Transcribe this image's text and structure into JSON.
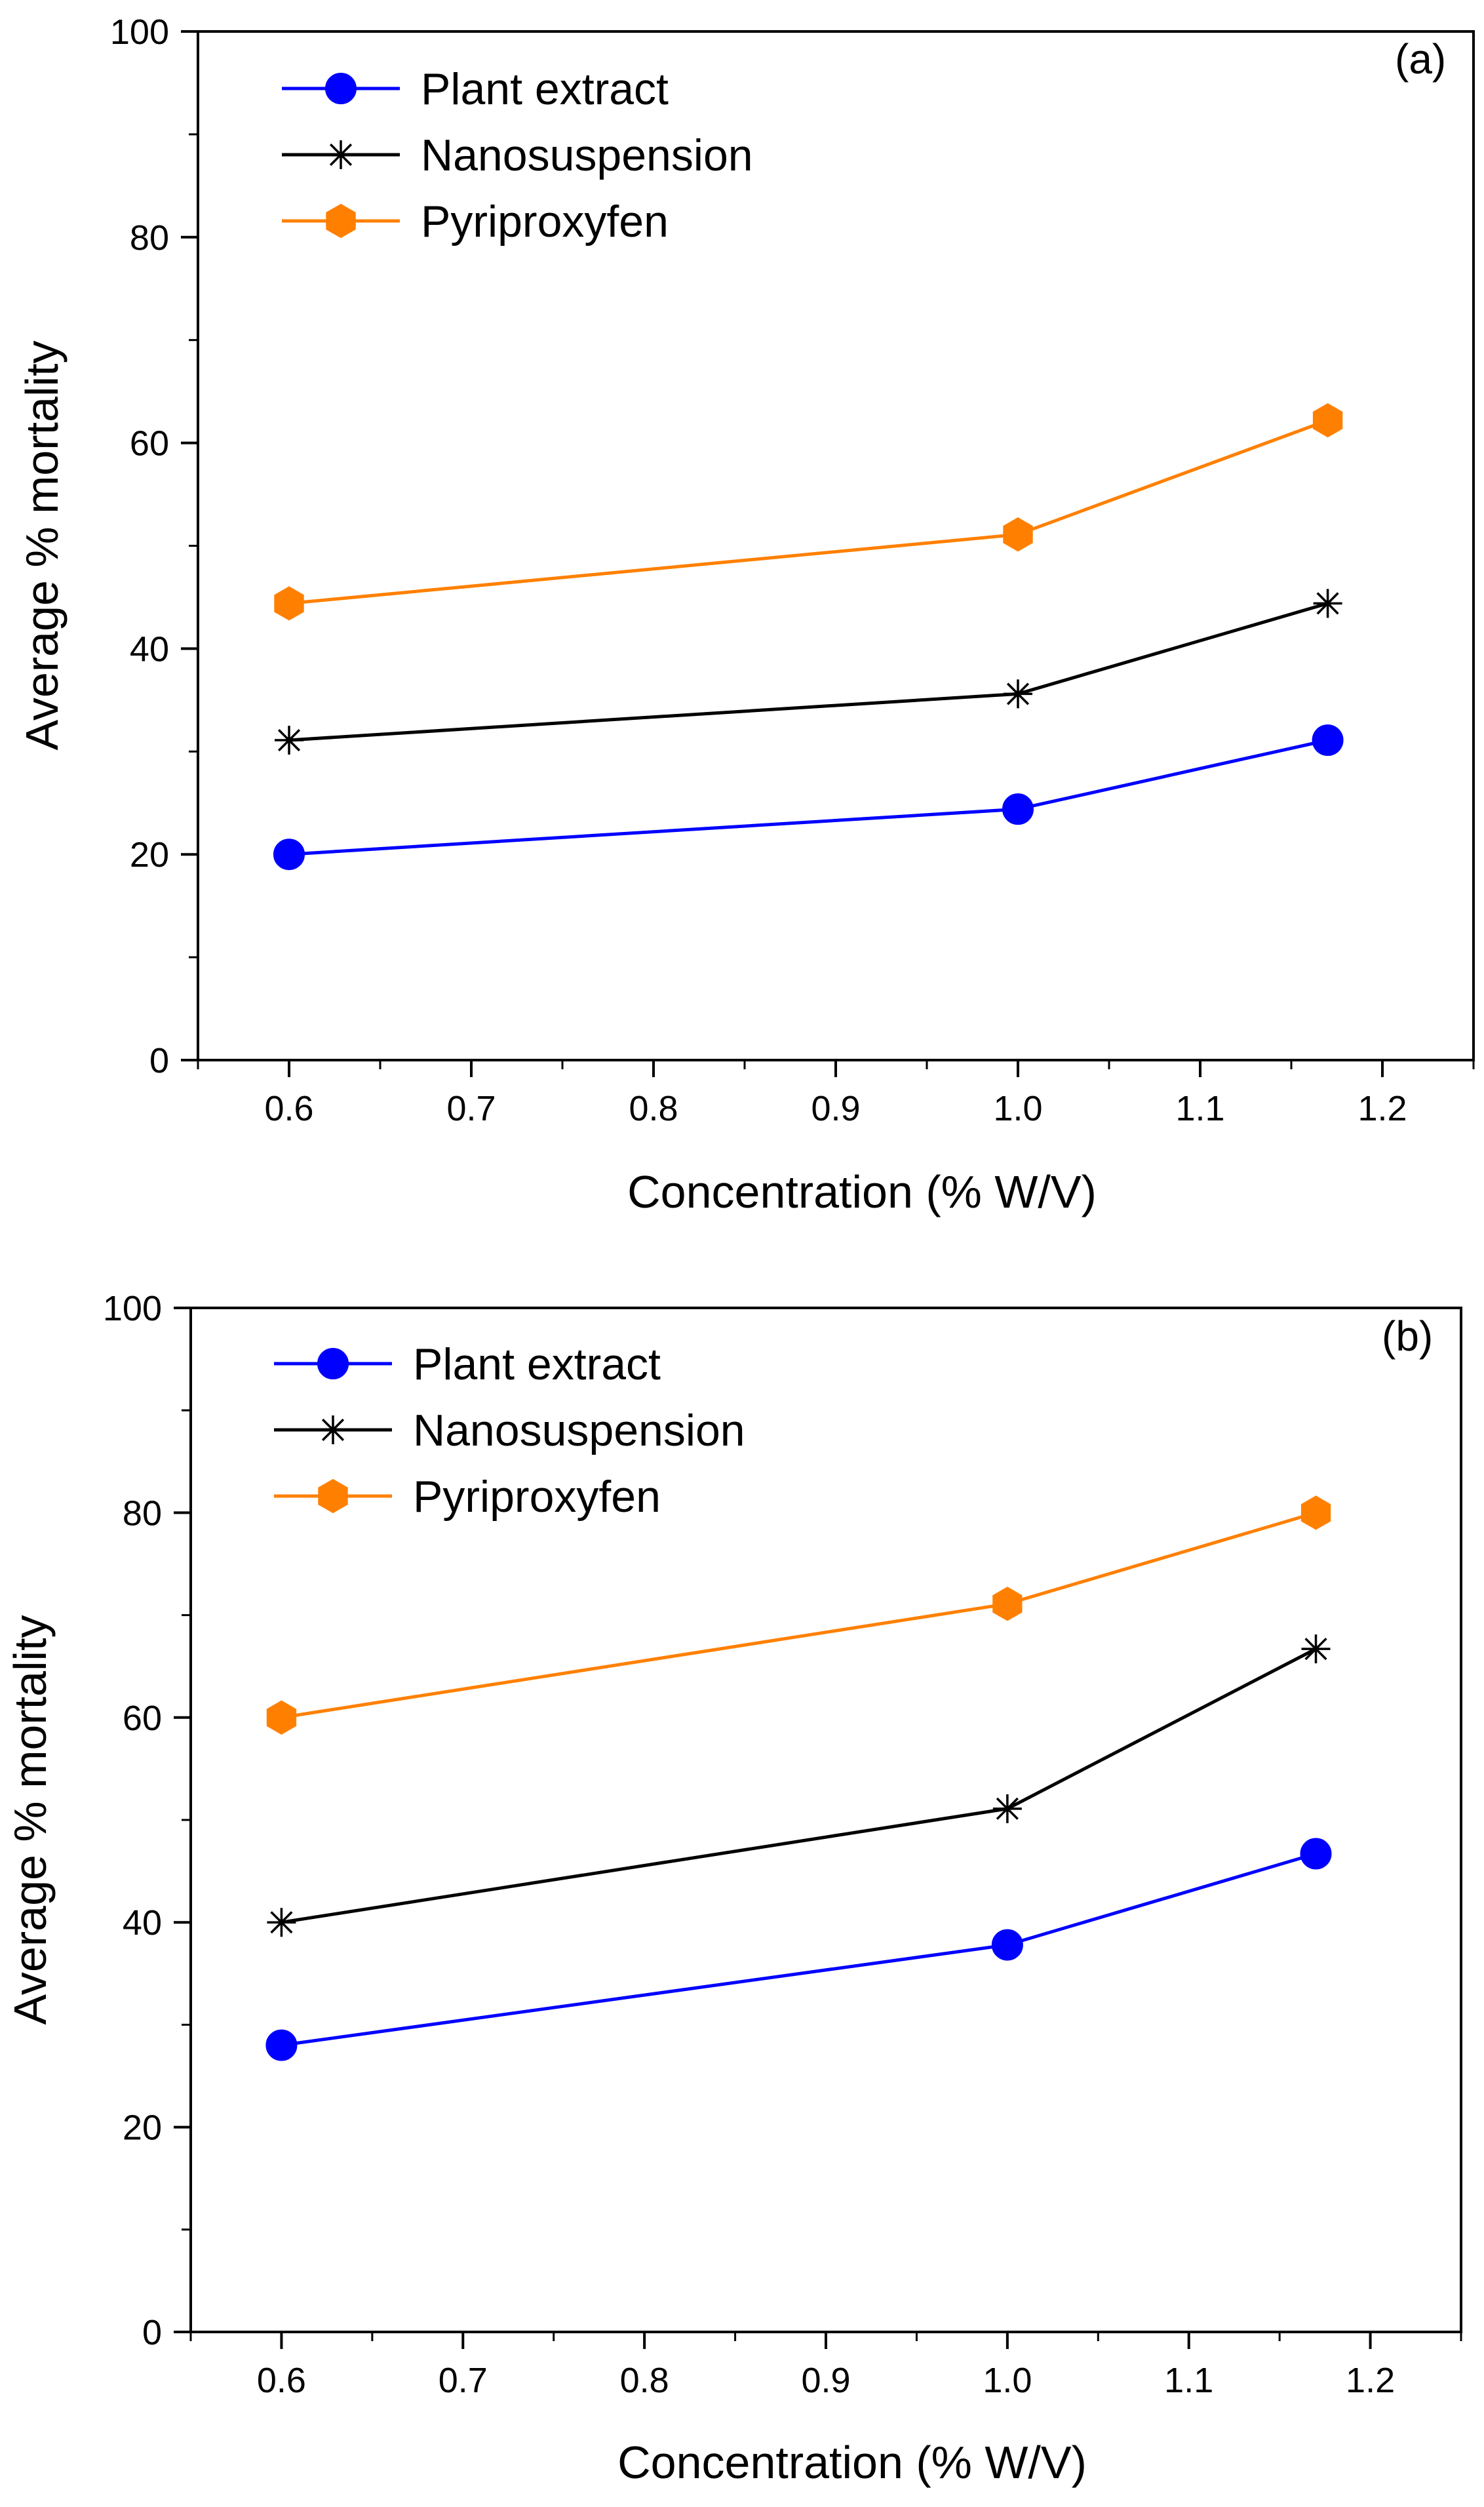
{
  "chart_data": [
    {
      "type": "line",
      "panel_label": "(a)",
      "xlabel": "Concentration (% W/V)",
      "ylabel": "Average % mortality",
      "xlim": [
        0.55,
        1.25
      ],
      "ylim": [
        0,
        100
      ],
      "x_ticks": [
        0.6,
        0.7,
        0.8,
        0.9,
        1.0,
        1.1,
        1.2
      ],
      "x_tick_labels": [
        "0.6",
        "0.7",
        "0.8",
        "0.9",
        "1.0",
        "1.1",
        "1.2"
      ],
      "y_ticks": [
        0,
        20,
        40,
        60,
        80,
        100
      ],
      "y_tick_labels": [
        "0",
        "20",
        "40",
        "60",
        "80",
        "100"
      ],
      "legend_position": "top-left",
      "series": [
        {
          "name": "Plant extract",
          "marker": "circle",
          "color": "#0000ff",
          "x": [
            0.6,
            1.0,
            1.17
          ],
          "values": [
            20,
            24.4,
            31.1
          ]
        },
        {
          "name": "Nanosuspension",
          "marker": "asterisk",
          "color": "#000000",
          "x": [
            0.6,
            1.0,
            1.17
          ],
          "values": [
            31.1,
            35.6,
            44.4
          ]
        },
        {
          "name": "Pyriproxyfen",
          "marker": "hexagon",
          "color": "#ff8000",
          "x": [
            0.6,
            1.0,
            1.17
          ],
          "values": [
            44.4,
            51.1,
            62.2
          ]
        }
      ]
    },
    {
      "type": "line",
      "panel_label": "(b)",
      "xlabel": "Concentration (% W/V)",
      "ylabel": "Average % mortality",
      "xlim": [
        0.55,
        1.25
      ],
      "ylim": [
        0,
        100
      ],
      "x_ticks": [
        0.6,
        0.7,
        0.8,
        0.9,
        1.0,
        1.1,
        1.2
      ],
      "x_tick_labels": [
        "0.6",
        "0.7",
        "0.8",
        "0.9",
        "1.0",
        "1.1",
        "1.2"
      ],
      "y_ticks": [
        0,
        20,
        40,
        60,
        80,
        100
      ],
      "y_tick_labels": [
        "0",
        "20",
        "40",
        "60",
        "80",
        "100"
      ],
      "legend_position": "top-left",
      "series": [
        {
          "name": "Plant extract",
          "marker": "circle",
          "color": "#0000ff",
          "x": [
            0.6,
            1.0,
            1.17
          ],
          "values": [
            28,
            37.8,
            46.7
          ]
        },
        {
          "name": "Nanosuspension",
          "marker": "asterisk",
          "color": "#000000",
          "x": [
            0.6,
            1.0,
            1.17
          ],
          "values": [
            40,
            51.1,
            66.7
          ]
        },
        {
          "name": "Pyriproxyfen",
          "marker": "hexagon",
          "color": "#ff8000",
          "x": [
            0.6,
            1.0,
            1.17
          ],
          "values": [
            60,
            71.1,
            80
          ]
        }
      ]
    }
  ]
}
